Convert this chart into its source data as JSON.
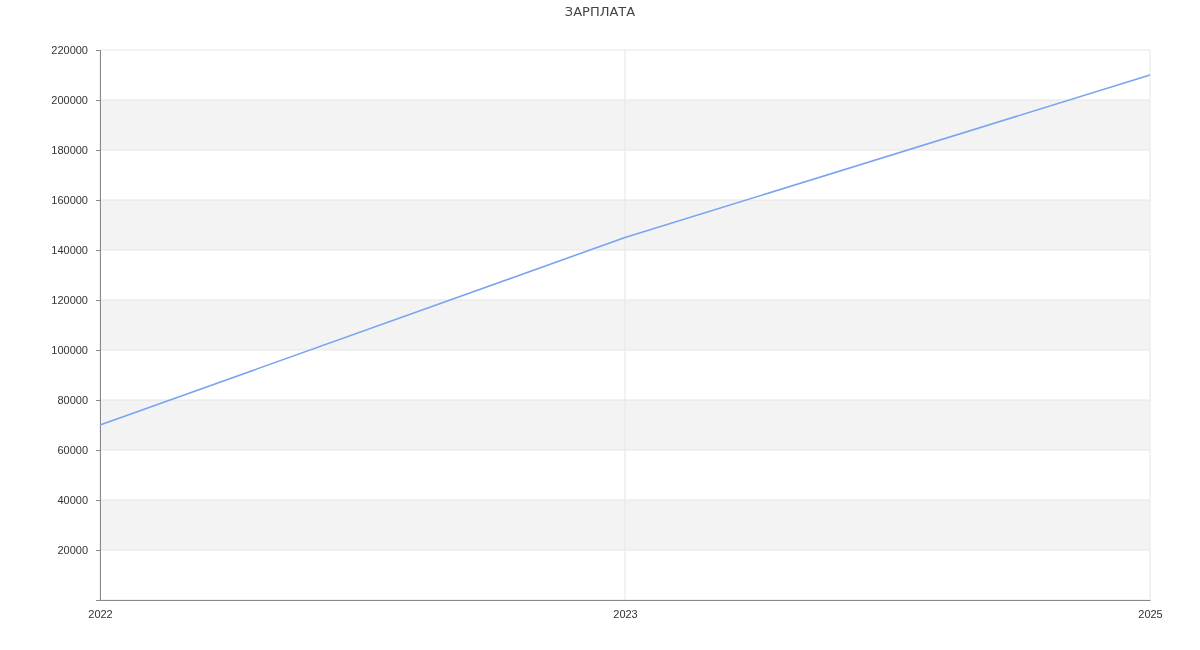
{
  "chart_data": {
    "type": "line",
    "title": "ЗАРПЛАТА",
    "categories": [
      "2022",
      "2023",
      "2025"
    ],
    "series": [
      {
        "color": "#7aa3f0",
        "values": [
          70000,
          145000,
          210000
        ]
      }
    ],
    "ylim": [
      0,
      220000
    ],
    "yticks": [
      {
        "value": 0,
        "label": null
      },
      20000,
      40000,
      60000,
      80000,
      100000,
      120000,
      140000,
      160000,
      180000,
      200000,
      220000
    ],
    "grid": true,
    "marker": "none",
    "line_style": "solid"
  }
}
